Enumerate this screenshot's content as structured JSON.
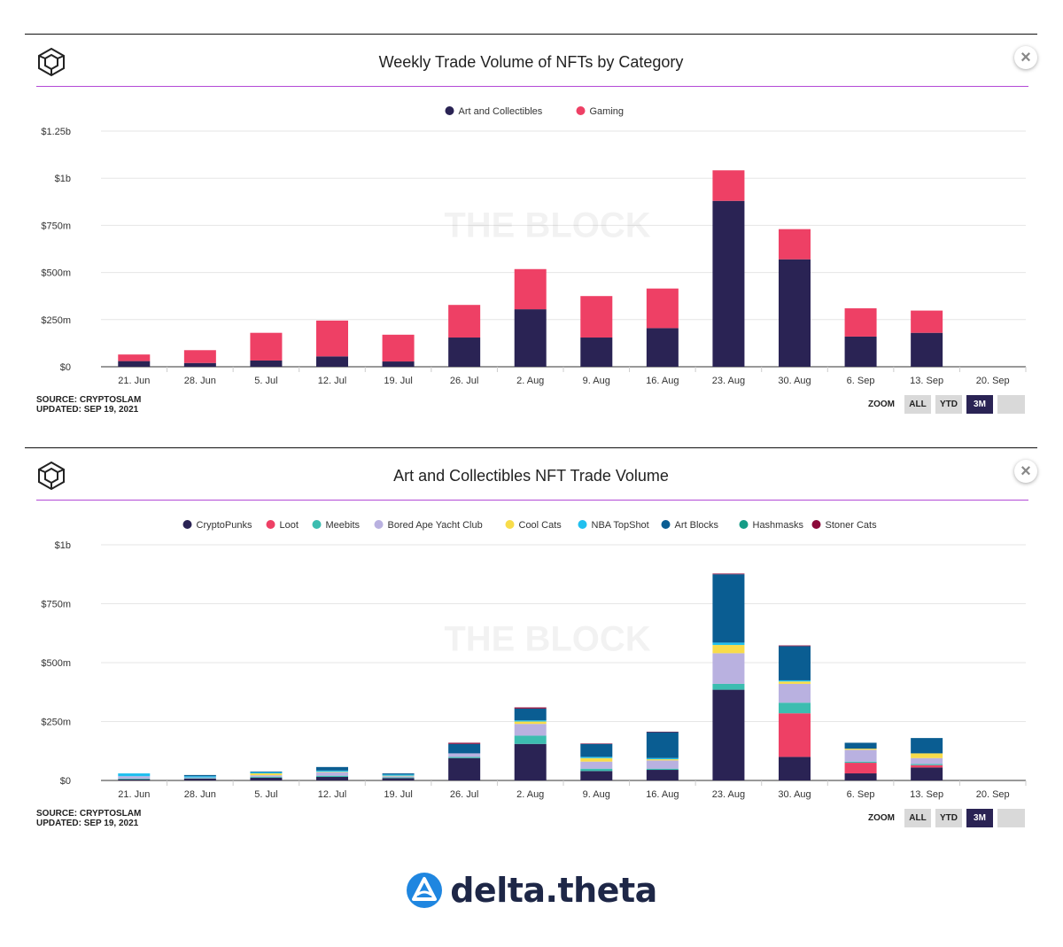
{
  "colors": {
    "art": "#2a2354",
    "gaming": "#ee4065",
    "CryptoPunks": "#2a2354",
    "Loot": "#ee4065",
    "Meebits": "#3cbdb0",
    "Bored Ape Yacht Club": "#b9b1e0",
    "Cool Cats": "#f8dc4a",
    "NBA TopShot": "#21c0ef",
    "Art Blocks": "#0a5d92",
    "Hashmasks": "#159c86",
    "Stoner Cats": "#8b0a3a"
  },
  "watermark": "THE BLOCK",
  "brand": {
    "name": "delta.theta",
    "icon": "delta-theta-logo-icon"
  },
  "charts": [
    {
      "title": "Weekly Trade Volume of NFTs by Category",
      "source": "SOURCE: CRYPTOSLAM",
      "updated": "UPDATED: SEP 19, 2021",
      "zoom": {
        "label": "ZOOM",
        "buttons": [
          "ALL",
          "YTD",
          "3M",
          ""
        ],
        "active": "3M"
      }
    },
    {
      "title": "Art and Collectibles NFT Trade Volume",
      "source": "SOURCE: CRYPTOSLAM",
      "updated": "UPDATED: SEP 19, 2021",
      "zoom": {
        "label": "ZOOM",
        "buttons": [
          "ALL",
          "YTD",
          "3M",
          ""
        ],
        "active": "3M"
      }
    }
  ],
  "chart_data": [
    {
      "type": "bar",
      "stacked": true,
      "title": "Weekly Trade Volume of NFTs by Category",
      "categories": [
        "21. Jun",
        "28. Jun",
        "5. Jul",
        "12. Jul",
        "19. Jul",
        "26. Jul",
        "2. Aug",
        "9. Aug",
        "16. Aug",
        "23. Aug",
        "30. Aug",
        "6. Sep",
        "13. Sep",
        "20. Sep"
      ],
      "series": [
        {
          "name": "Art and Collectibles",
          "values": [
            30,
            20,
            33,
            55,
            28,
            155,
            305,
            155,
            205,
            880,
            570,
            160,
            180,
            0
          ]
        },
        {
          "name": "Gaming",
          "values": [
            35,
            68,
            147,
            190,
            142,
            173,
            213,
            220,
            210,
            162,
            160,
            150,
            118,
            0
          ]
        }
      ],
      "yticks": [
        0,
        250,
        500,
        750,
        1000,
        1250
      ],
      "ytick_labels": [
        "$0",
        "$250m",
        "$500m",
        "$750m",
        "$1b",
        "$1.25b"
      ],
      "ylim": [
        0,
        1250
      ],
      "unit": "millions USD",
      "legend": "top-center",
      "grid": true
    },
    {
      "type": "bar",
      "stacked": true,
      "title": "Art and Collectibles NFT Trade Volume",
      "categories": [
        "21. Jun",
        "28. Jun",
        "5. Jul",
        "12. Jul",
        "19. Jul",
        "26. Jul",
        "2. Aug",
        "9. Aug",
        "16. Aug",
        "23. Aug",
        "30. Aug",
        "6. Sep",
        "13. Sep",
        "20. Sep"
      ],
      "series": [
        {
          "name": "CryptoPunks",
          "values": [
            5,
            8,
            12,
            15,
            10,
            95,
            155,
            40,
            45,
            385,
            100,
            30,
            55,
            0
          ]
        },
        {
          "name": "Loot",
          "values": [
            0,
            0,
            0,
            0,
            0,
            0,
            0,
            0,
            0,
            0,
            185,
            45,
            10,
            0
          ]
        },
        {
          "name": "Meebits",
          "values": [
            3,
            2,
            4,
            5,
            3,
            5,
            35,
            10,
            5,
            25,
            45,
            5,
            5,
            0
          ]
        },
        {
          "name": "Bored Ape Yacht Club",
          "values": [
            10,
            3,
            6,
            15,
            5,
            15,
            50,
            30,
            35,
            130,
            80,
            50,
            25,
            0
          ]
        },
        {
          "name": "Cool Cats",
          "values": [
            0,
            0,
            8,
            2,
            2,
            0,
            10,
            15,
            5,
            35,
            10,
            5,
            20,
            0
          ]
        },
        {
          "name": "NBA TopShot",
          "values": [
            12,
            5,
            5,
            5,
            5,
            0,
            5,
            5,
            5,
            10,
            5,
            0,
            0,
            0
          ]
        },
        {
          "name": "Art Blocks",
          "values": [
            0,
            5,
            3,
            15,
            5,
            40,
            50,
            55,
            110,
            290,
            145,
            25,
            65,
            0
          ]
        },
        {
          "name": "Hashmasks",
          "values": [
            0,
            0,
            0,
            0,
            0,
            0,
            0,
            0,
            0,
            0,
            0,
            0,
            0,
            0
          ]
        },
        {
          "name": "Stoner Cats",
          "values": [
            0,
            0,
            0,
            0,
            0,
            5,
            5,
            2,
            2,
            3,
            3,
            0,
            0,
            0
          ]
        }
      ],
      "yticks": [
        0,
        250,
        500,
        750,
        1000
      ],
      "ytick_labels": [
        "$0",
        "$250m",
        "$500m",
        "$750m",
        "$1b"
      ],
      "ylim": [
        0,
        1000
      ],
      "unit": "millions USD",
      "legend": "top-center",
      "grid": true
    }
  ]
}
